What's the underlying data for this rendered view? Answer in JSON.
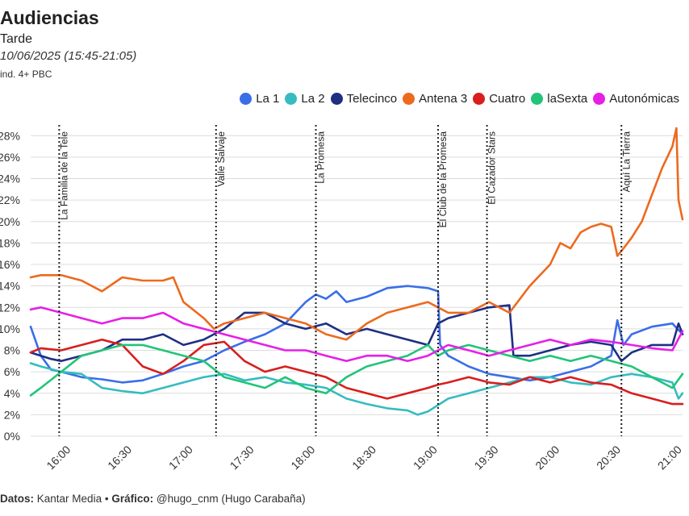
{
  "header": {
    "title": "Audiencias",
    "subtitle": "Tarde",
    "date_range": "10/06/2025 (15:45-21:05)",
    "note": "ind. 4+ PBC"
  },
  "footer": {
    "source_label": "Datos:",
    "source_value": "Kantar Media",
    "separator": "•",
    "credit_label": "Gráfico:",
    "credit_value": "@hugo_cnm (Hugo Carabaña)"
  },
  "chart_data": {
    "type": "line",
    "title": "Audiencias",
    "xlabel": "",
    "ylabel": "",
    "x_range": [
      "15:45",
      "21:05"
    ],
    "ylim": [
      0,
      29
    ],
    "y_ticks": [
      0,
      2,
      4,
      6,
      8,
      10,
      12,
      14,
      16,
      18,
      20,
      22,
      24,
      26,
      28
    ],
    "y_tick_labels": [
      "0%",
      "2%",
      "4%",
      "6%",
      "8%",
      "10%",
      "12%",
      "14%",
      "16%",
      "18%",
      "20%",
      "22%",
      "24%",
      "26%",
      "28%"
    ],
    "x_ticks": [
      "16:00",
      "16:30",
      "17:00",
      "17:30",
      "18:00",
      "18:30",
      "19:00",
      "19:30",
      "20:00",
      "20:30",
      "21:00"
    ],
    "grid": "horizontal",
    "legend_position": "top-right",
    "annotations": [
      {
        "time": "15:59",
        "label": "La Familia de la Tele"
      },
      {
        "time": "17:16",
        "label": "Valle Salvaje"
      },
      {
        "time": "18:05",
        "label": "La Promesa"
      },
      {
        "time": "19:05",
        "label": "El Club de la Promesa"
      },
      {
        "time": "19:29",
        "label": "El Cazador Stars"
      },
      {
        "time": "20:35",
        "label": "Aquí La Tierra"
      }
    ],
    "series": [
      {
        "name": "La 1",
        "color": "#3a6ee8",
        "points": [
          [
            "15:45",
            10.2
          ],
          [
            "15:50",
            7.5
          ],
          [
            "15:55",
            6.2
          ],
          [
            "16:00",
            6.0
          ],
          [
            "16:10",
            5.5
          ],
          [
            "16:20",
            5.3
          ],
          [
            "16:30",
            5.0
          ],
          [
            "16:40",
            5.2
          ],
          [
            "16:50",
            5.8
          ],
          [
            "17:00",
            6.5
          ],
          [
            "17:10",
            7.0
          ],
          [
            "17:20",
            8.0
          ],
          [
            "17:30",
            8.8
          ],
          [
            "17:40",
            9.5
          ],
          [
            "17:50",
            10.5
          ],
          [
            "18:00",
            12.5
          ],
          [
            "18:05",
            13.2
          ],
          [
            "18:10",
            12.8
          ],
          [
            "18:15",
            13.5
          ],
          [
            "18:20",
            12.5
          ],
          [
            "18:30",
            13.0
          ],
          [
            "18:40",
            13.8
          ],
          [
            "18:50",
            14.0
          ],
          [
            "19:00",
            13.8
          ],
          [
            "19:05",
            13.5
          ],
          [
            "19:06",
            8.5
          ],
          [
            "19:10",
            7.5
          ],
          [
            "19:20",
            6.5
          ],
          [
            "19:30",
            5.8
          ],
          [
            "19:40",
            5.5
          ],
          [
            "19:50",
            5.2
          ],
          [
            "20:00",
            5.5
          ],
          [
            "20:10",
            6.0
          ],
          [
            "20:20",
            6.5
          ],
          [
            "20:30",
            7.5
          ],
          [
            "20:33",
            10.8
          ],
          [
            "20:36",
            8.5
          ],
          [
            "20:40",
            9.5
          ],
          [
            "20:50",
            10.2
          ],
          [
            "21:00",
            10.5
          ],
          [
            "21:05",
            9.5
          ]
        ]
      },
      {
        "name": "La 2",
        "color": "#35bcc0",
        "points": [
          [
            "15:45",
            6.8
          ],
          [
            "15:50",
            6.5
          ],
          [
            "16:00",
            6.0
          ],
          [
            "16:10",
            5.8
          ],
          [
            "16:20",
            4.5
          ],
          [
            "16:30",
            4.2
          ],
          [
            "16:40",
            4.0
          ],
          [
            "16:50",
            4.5
          ],
          [
            "17:00",
            5.0
          ],
          [
            "17:10",
            5.5
          ],
          [
            "17:20",
            5.8
          ],
          [
            "17:30",
            5.2
          ],
          [
            "17:40",
            5.5
          ],
          [
            "17:50",
            5.0
          ],
          [
            "18:00",
            4.8
          ],
          [
            "18:10",
            4.5
          ],
          [
            "18:20",
            3.5
          ],
          [
            "18:30",
            3.0
          ],
          [
            "18:40",
            2.6
          ],
          [
            "18:50",
            2.4
          ],
          [
            "18:55",
            2.0
          ],
          [
            "19:00",
            2.3
          ],
          [
            "19:10",
            3.5
          ],
          [
            "19:20",
            4.0
          ],
          [
            "19:30",
            4.5
          ],
          [
            "19:40",
            5.0
          ],
          [
            "19:50",
            5.5
          ],
          [
            "20:00",
            5.5
          ],
          [
            "20:10",
            5.0
          ],
          [
            "20:20",
            4.8
          ],
          [
            "20:30",
            5.5
          ],
          [
            "20:40",
            5.8
          ],
          [
            "20:50",
            5.5
          ],
          [
            "21:00",
            5.0
          ],
          [
            "21:03",
            3.5
          ],
          [
            "21:05",
            4.0
          ]
        ]
      },
      {
        "name": "Telecinco",
        "color": "#1e2f82",
        "points": [
          [
            "15:45",
            7.8
          ],
          [
            "15:50",
            7.5
          ],
          [
            "15:55",
            7.2
          ],
          [
            "16:00",
            7.0
          ],
          [
            "16:10",
            7.5
          ],
          [
            "16:20",
            8.0
          ],
          [
            "16:30",
            9.0
          ],
          [
            "16:40",
            9.0
          ],
          [
            "16:50",
            9.5
          ],
          [
            "17:00",
            8.5
          ],
          [
            "17:10",
            9.0
          ],
          [
            "17:20",
            10.0
          ],
          [
            "17:30",
            11.5
          ],
          [
            "17:40",
            11.5
          ],
          [
            "17:50",
            10.5
          ],
          [
            "18:00",
            10.0
          ],
          [
            "18:10",
            10.5
          ],
          [
            "18:20",
            9.5
          ],
          [
            "18:30",
            10.0
          ],
          [
            "18:40",
            9.5
          ],
          [
            "18:50",
            9.0
          ],
          [
            "19:00",
            8.5
          ],
          [
            "19:05",
            10.5
          ],
          [
            "19:10",
            11.0
          ],
          [
            "19:20",
            11.5
          ],
          [
            "19:30",
            12.0
          ],
          [
            "19:40",
            12.2
          ],
          [
            "19:42",
            7.5
          ],
          [
            "19:50",
            7.5
          ],
          [
            "20:00",
            8.0
          ],
          [
            "20:10",
            8.5
          ],
          [
            "20:20",
            8.8
          ],
          [
            "20:30",
            8.5
          ],
          [
            "20:35",
            7.0
          ],
          [
            "20:40",
            7.8
          ],
          [
            "20:50",
            8.5
          ],
          [
            "21:00",
            8.5
          ],
          [
            "21:03",
            10.5
          ],
          [
            "21:05",
            9.5
          ]
        ]
      },
      {
        "name": "Antena 3",
        "color": "#ec6a1f",
        "points": [
          [
            "15:45",
            14.8
          ],
          [
            "15:50",
            15.0
          ],
          [
            "16:00",
            15.0
          ],
          [
            "16:10",
            14.5
          ],
          [
            "16:20",
            13.5
          ],
          [
            "16:30",
            14.8
          ],
          [
            "16:40",
            14.5
          ],
          [
            "16:50",
            14.5
          ],
          [
            "16:55",
            14.8
          ],
          [
            "17:00",
            12.5
          ],
          [
            "17:10",
            11.0
          ],
          [
            "17:15",
            10.0
          ],
          [
            "17:20",
            10.5
          ],
          [
            "17:30",
            11.0
          ],
          [
            "17:40",
            11.5
          ],
          [
            "17:50",
            11.0
          ],
          [
            "18:00",
            10.5
          ],
          [
            "18:10",
            9.5
          ],
          [
            "18:20",
            9.0
          ],
          [
            "18:30",
            10.5
          ],
          [
            "18:40",
            11.5
          ],
          [
            "18:50",
            12.0
          ],
          [
            "19:00",
            12.5
          ],
          [
            "19:05",
            12.0
          ],
          [
            "19:10",
            11.5
          ],
          [
            "19:20",
            11.5
          ],
          [
            "19:30",
            12.5
          ],
          [
            "19:40",
            11.5
          ],
          [
            "19:50",
            14.0
          ],
          [
            "20:00",
            16.0
          ],
          [
            "20:05",
            18.0
          ],
          [
            "20:10",
            17.5
          ],
          [
            "20:15",
            19.0
          ],
          [
            "20:20",
            19.5
          ],
          [
            "20:25",
            19.8
          ],
          [
            "20:30",
            19.5
          ],
          [
            "20:33",
            16.8
          ],
          [
            "20:36",
            17.5
          ],
          [
            "20:40",
            18.5
          ],
          [
            "20:45",
            20.0
          ],
          [
            "20:50",
            22.5
          ],
          [
            "20:55",
            25.0
          ],
          [
            "21:00",
            27.0
          ],
          [
            "21:02",
            28.7
          ],
          [
            "21:03",
            22.0
          ],
          [
            "21:05",
            20.2
          ]
        ]
      },
      {
        "name": "Cuatro",
        "color": "#d81e1e",
        "points": [
          [
            "15:45",
            7.8
          ],
          [
            "15:50",
            8.2
          ],
          [
            "16:00",
            8.0
          ],
          [
            "16:10",
            8.5
          ],
          [
            "16:20",
            9.0
          ],
          [
            "16:30",
            8.5
          ],
          [
            "16:40",
            6.5
          ],
          [
            "16:50",
            5.8
          ],
          [
            "17:00",
            7.0
          ],
          [
            "17:10",
            8.5
          ],
          [
            "17:20",
            8.8
          ],
          [
            "17:30",
            7.0
          ],
          [
            "17:40",
            6.0
          ],
          [
            "17:50",
            6.5
          ],
          [
            "18:00",
            6.0
          ],
          [
            "18:10",
            5.5
          ],
          [
            "18:20",
            4.5
          ],
          [
            "18:30",
            4.0
          ],
          [
            "18:40",
            3.5
          ],
          [
            "18:50",
            4.0
          ],
          [
            "19:00",
            4.5
          ],
          [
            "19:05",
            4.8
          ],
          [
            "19:10",
            5.0
          ],
          [
            "19:20",
            5.5
          ],
          [
            "19:30",
            5.0
          ],
          [
            "19:40",
            4.8
          ],
          [
            "19:50",
            5.5
          ],
          [
            "20:00",
            5.0
          ],
          [
            "20:10",
            5.5
          ],
          [
            "20:20",
            5.0
          ],
          [
            "20:30",
            4.8
          ],
          [
            "20:40",
            4.0
          ],
          [
            "20:50",
            3.5
          ],
          [
            "21:00",
            3.0
          ],
          [
            "21:05",
            3.0
          ]
        ]
      },
      {
        "name": "laSexta",
        "color": "#22c47a",
        "points": [
          [
            "15:45",
            3.8
          ],
          [
            "15:50",
            4.5
          ],
          [
            "16:00",
            6.0
          ],
          [
            "16:10",
            7.5
          ],
          [
            "16:20",
            8.0
          ],
          [
            "16:30",
            8.5
          ],
          [
            "16:40",
            8.5
          ],
          [
            "16:50",
            8.0
          ],
          [
            "17:00",
            7.5
          ],
          [
            "17:10",
            7.0
          ],
          [
            "17:20",
            5.5
          ],
          [
            "17:30",
            5.0
          ],
          [
            "17:40",
            4.5
          ],
          [
            "17:50",
            5.5
          ],
          [
            "18:00",
            4.5
          ],
          [
            "18:10",
            4.0
          ],
          [
            "18:20",
            5.5
          ],
          [
            "18:30",
            6.5
          ],
          [
            "18:40",
            7.0
          ],
          [
            "18:50",
            7.5
          ],
          [
            "19:00",
            8.5
          ],
          [
            "19:05",
            7.5
          ],
          [
            "19:10",
            8.0
          ],
          [
            "19:20",
            8.5
          ],
          [
            "19:30",
            8.0
          ],
          [
            "19:40",
            7.5
          ],
          [
            "19:50",
            7.0
          ],
          [
            "20:00",
            7.5
          ],
          [
            "20:10",
            7.0
          ],
          [
            "20:20",
            7.5
          ],
          [
            "20:30",
            7.0
          ],
          [
            "20:40",
            6.5
          ],
          [
            "20:50",
            5.5
          ],
          [
            "21:00",
            4.5
          ],
          [
            "21:05",
            5.8
          ]
        ]
      },
      {
        "name": "Autonómicas",
        "color": "#e61fe6",
        "points": [
          [
            "15:45",
            11.8
          ],
          [
            "15:50",
            12.0
          ],
          [
            "16:00",
            11.5
          ],
          [
            "16:10",
            11.0
          ],
          [
            "16:20",
            10.5
          ],
          [
            "16:30",
            11.0
          ],
          [
            "16:40",
            11.0
          ],
          [
            "16:50",
            11.5
          ],
          [
            "17:00",
            10.5
          ],
          [
            "17:10",
            10.0
          ],
          [
            "17:20",
            9.5
          ],
          [
            "17:30",
            9.0
          ],
          [
            "17:40",
            8.5
          ],
          [
            "17:50",
            8.0
          ],
          [
            "18:00",
            8.0
          ],
          [
            "18:10",
            7.5
          ],
          [
            "18:20",
            7.0
          ],
          [
            "18:30",
            7.5
          ],
          [
            "18:40",
            7.5
          ],
          [
            "18:50",
            7.0
          ],
          [
            "19:00",
            7.5
          ],
          [
            "19:05",
            8.0
          ],
          [
            "19:10",
            8.5
          ],
          [
            "19:20",
            8.0
          ],
          [
            "19:30",
            7.5
          ],
          [
            "19:40",
            8.0
          ],
          [
            "19:50",
            8.5
          ],
          [
            "20:00",
            9.0
          ],
          [
            "20:10",
            8.5
          ],
          [
            "20:20",
            9.0
          ],
          [
            "20:30",
            8.8
          ],
          [
            "20:40",
            8.5
          ],
          [
            "20:50",
            8.2
          ],
          [
            "21:00",
            8.0
          ],
          [
            "21:05",
            9.8
          ]
        ]
      }
    ]
  }
}
